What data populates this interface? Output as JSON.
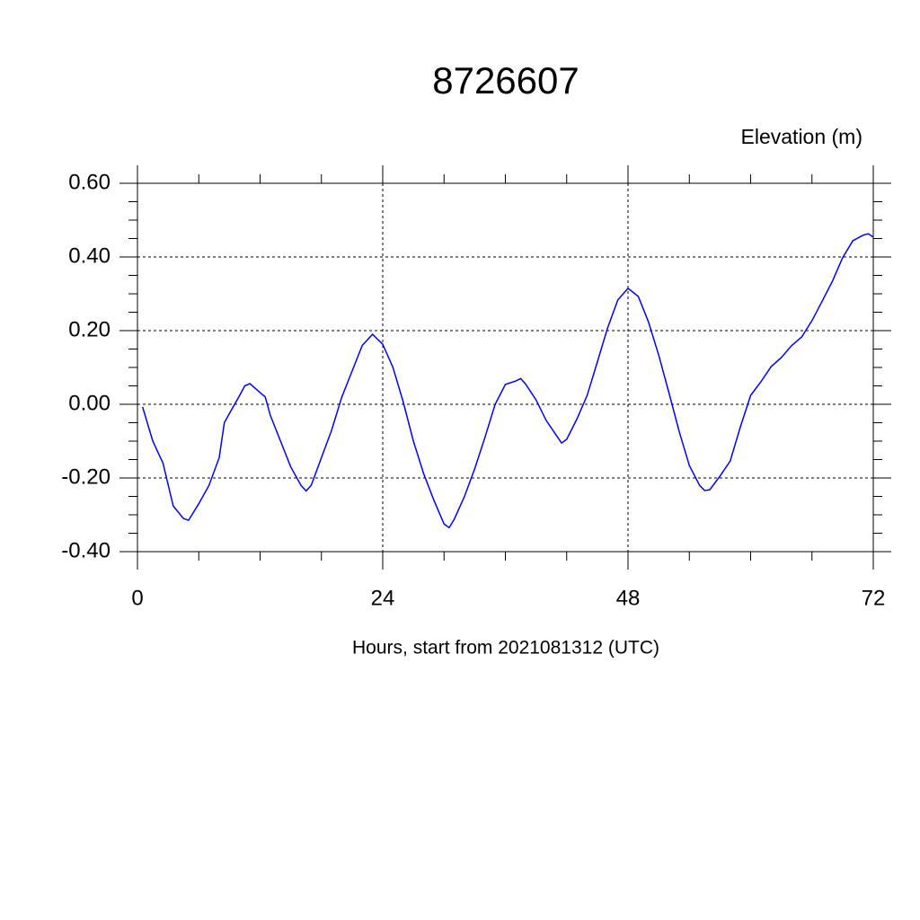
{
  "chart_data": {
    "type": "line",
    "title": "8726607",
    "subtitle": "Elevation (m)",
    "x_label": "Hours, start from 2021081312 (UTC)",
    "x": [
      0.5,
      1.5,
      2.5,
      3.5,
      4.5,
      5,
      6,
      7,
      8,
      8.5,
      9,
      10,
      10.5,
      11,
      12,
      12.5,
      13,
      14,
      15,
      16,
      16.5,
      17,
      18,
      19,
      20,
      21,
      22,
      23,
      24,
      25,
      26,
      27,
      28,
      29,
      30,
      30.5,
      31,
      32,
      33,
      34,
      35,
      36,
      37,
      37.5,
      38,
      39,
      40,
      41,
      41.5,
      42,
      43,
      44,
      45,
      46,
      47,
      48,
      49,
      50,
      51,
      52,
      53,
      54,
      55,
      55.5,
      56,
      57,
      58,
      59,
      60,
      61,
      62,
      63,
      64,
      65,
      66,
      67,
      68,
      69,
      70,
      71,
      71.5,
      72
    ],
    "series": [
      {
        "name": "Elevation",
        "color": "#0000ff",
        "values": [
          -0.007,
          -0.1,
          -0.16,
          -0.276,
          -0.31,
          -0.315,
          -0.27,
          -0.22,
          -0.145,
          -0.05,
          -0.025,
          0.024,
          0.05,
          0.056,
          0.032,
          0.02,
          -0.03,
          -0.1,
          -0.17,
          -0.22,
          -0.235,
          -0.22,
          -0.145,
          -0.07,
          0.02,
          0.09,
          0.16,
          0.19,
          0.163,
          0.1,
          0.007,
          -0.1,
          -0.188,
          -0.26,
          -0.325,
          -0.335,
          -0.312,
          -0.25,
          -0.175,
          -0.09,
          0.0,
          0.054,
          0.063,
          0.07,
          0.054,
          0.012,
          -0.044,
          -0.085,
          -0.105,
          -0.095,
          -0.04,
          0.024,
          0.115,
          0.207,
          0.283,
          0.315,
          0.293,
          0.224,
          0.134,
          0.032,
          -0.073,
          -0.166,
          -0.22,
          -0.234,
          -0.232,
          -0.195,
          -0.154,
          -0.061,
          0.024,
          0.061,
          0.102,
          0.127,
          0.159,
          0.183,
          0.227,
          0.28,
          0.334,
          0.398,
          0.444,
          0.459,
          0.463,
          0.454
        ]
      }
    ],
    "xlim": [
      0,
      72
    ],
    "xticks": [
      0,
      24,
      48,
      72
    ],
    "ylim": [
      -0.4,
      0.6
    ],
    "yticks": [
      {
        "value": -0.4,
        "label": "-0.40"
      },
      {
        "value": -0.2,
        "label": "-0.20"
      },
      {
        "value": 0,
        "label": "0.00"
      },
      {
        "value": 0.2,
        "label": "0.20"
      },
      {
        "value": 0.4,
        "label": "0.40"
      },
      {
        "value": 0.6,
        "label": "0.60"
      }
    ],
    "grid": true
  }
}
